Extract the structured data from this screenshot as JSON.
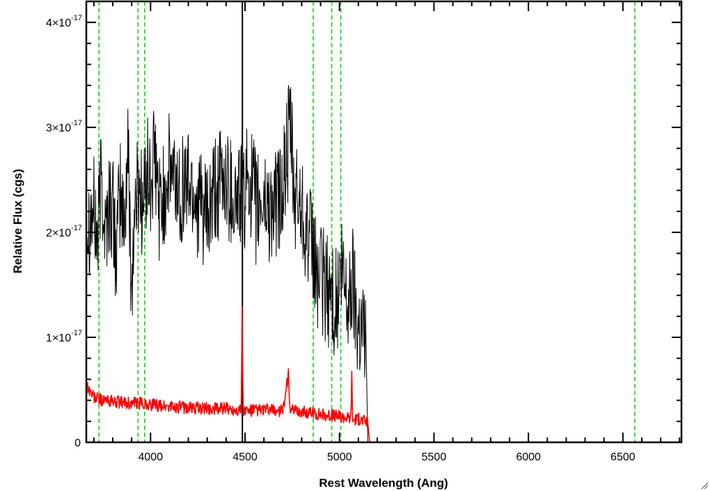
{
  "chart_data": {
    "type": "line",
    "xlabel": "Rest Wavelength (Ang)",
    "ylabel": "Relative Flux (cgs)",
    "xlim": [
      3660,
      6810
    ],
    "ylim": [
      0,
      4.2e-17
    ],
    "x_ticks": [
      4000,
      4500,
      5000,
      5500,
      6000,
      6500
    ],
    "x_tick_labels": [
      "4000",
      "4500",
      "5000",
      "5500",
      "6000",
      "6500"
    ],
    "y_ticks": [
      0,
      1e-17,
      2e-17,
      3e-17,
      4e-17
    ],
    "y_tick_labels": [
      {
        "mantissa": "0",
        "exponent": ""
      },
      {
        "mantissa": "1×10",
        "exponent": "-17"
      },
      {
        "mantissa": "2×10",
        "exponent": "-17"
      },
      {
        "mantissa": "3×10",
        "exponent": "-17"
      },
      {
        "mantissa": "4×10",
        "exponent": "-17"
      }
    ],
    "grid": false,
    "colors": {
      "spectrum": "#000000",
      "error_spectrum": "#ff0000",
      "line_markers": "#00dd00",
      "axes": "#000000"
    },
    "series": [
      {
        "color": "#000000",
        "x": [
          3660,
          3700,
          3720,
          3740,
          3760,
          3780,
          3800,
          3820,
          3840,
          3860,
          3880,
          3900,
          3920,
          3940,
          3960,
          3980,
          4000,
          4020,
          4050,
          4100,
          4150,
          4200,
          4250,
          4300,
          4350,
          4400,
          4450,
          4480,
          4490,
          4520,
          4560,
          4600,
          4650,
          4700,
          4740,
          4760,
          4800,
          4840,
          4860,
          4880,
          4920,
          4960,
          4990,
          5010,
          5050,
          5070,
          5090,
          5120,
          5140,
          5150
        ],
        "y": [
          2.1e-17,
          2.2e-17,
          1.9e-17,
          2.6e-17,
          2e-17,
          2.3e-17,
          2.2e-17,
          1.8e-17,
          2.4e-17,
          2e-17,
          2.8e-17,
          1.5e-17,
          2.3e-17,
          2.5e-17,
          2.2e-17,
          2.6e-17,
          2.4e-17,
          2.7e-17,
          2.2e-17,
          2.6e-17,
          2.4e-17,
          2.5e-17,
          2.3e-17,
          2.1e-17,
          2.4e-17,
          2.5e-17,
          2.3e-17,
          2.4e-17,
          2.2e-17,
          2.6e-17,
          2.2e-17,
          2.3e-17,
          2.2e-17,
          2.4e-17,
          3e-17,
          2.3e-17,
          2.3e-17,
          1.9e-17,
          1.8e-17,
          1.6e-17,
          1.5e-17,
          1.4e-17,
          1.3e-17,
          1.6e-17,
          1.3e-17,
          1.6e-17,
          1.2e-17,
          1.1e-17,
          1e-17,
          0.0
        ]
      },
      {
        "color": "#ff0000",
        "x": [
          3660,
          3700,
          3750,
          3800,
          3850,
          3900,
          3950,
          4000,
          4100,
          4200,
          4300,
          4400,
          4480,
          4485,
          4490,
          4495,
          4500,
          4600,
          4700,
          4730,
          4735,
          4740,
          4800,
          4900,
          5000,
          5060,
          5065,
          5070,
          5100,
          5140,
          5150,
          5160,
          6810
        ],
        "y": [
          5.5e-18,
          4.3e-18,
          4e-18,
          3.9e-18,
          3.8e-18,
          3.7e-18,
          3.7e-18,
          3.6e-18,
          3.4e-18,
          3.3e-18,
          3.2e-18,
          3.2e-18,
          3.1e-18,
          1.3e-17,
          3.1e-18,
          3e-18,
          3e-18,
          3.1e-18,
          3e-18,
          6.5e-18,
          4.5e-18,
          3e-18,
          2.9e-18,
          2.7e-18,
          2.5e-18,
          2.3e-18,
          6.3e-18,
          2.2e-18,
          2.2e-18,
          2e-18,
          1.8e-18,
          0,
          0
        ]
      }
    ],
    "marker_lines": [
      {
        "x": 3727,
        "color": "#00dd00",
        "style": "dashed"
      },
      {
        "x": 3934,
        "color": "#00dd00",
        "style": "dashed"
      },
      {
        "x": 3969,
        "color": "#00dd00",
        "style": "dashed"
      },
      {
        "x": 4486,
        "color": "#000000",
        "style": "solid"
      },
      {
        "x": 4861,
        "color": "#00dd00",
        "style": "dashed"
      },
      {
        "x": 4959,
        "color": "#00dd00",
        "style": "dashed"
      },
      {
        "x": 5007,
        "color": "#00dd00",
        "style": "dashed"
      },
      {
        "x": 6563,
        "color": "#00dd00",
        "style": "dashed"
      }
    ]
  }
}
